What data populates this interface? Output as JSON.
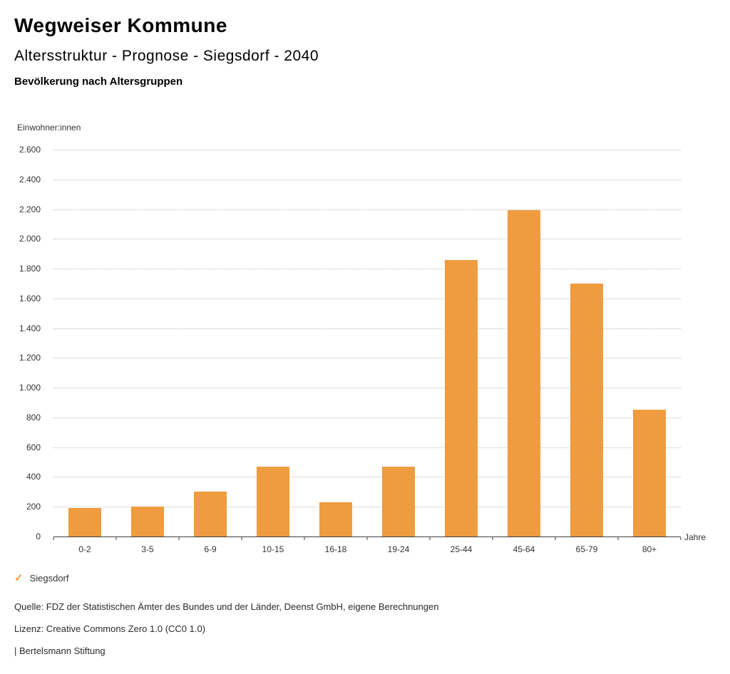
{
  "header": {
    "title": "Wegweiser Kommune",
    "subtitle": "Altersstruktur - Prognose - Siegsdorf - 2040",
    "chart_heading": "Bevölkerung nach Altersgruppen"
  },
  "chart_data": {
    "type": "bar",
    "title": "Bevölkerung nach Altersgruppen",
    "unit_label": "Einwohner:innen",
    "xlabel": "Jahre",
    "ylabel": "Einwohner:innen",
    "categories": [
      "0-2",
      "3-5",
      "6-9",
      "10-15",
      "16-18",
      "19-24",
      "25-44",
      "45-64",
      "65-79",
      "80+"
    ],
    "values": [
      190,
      200,
      300,
      470,
      230,
      470,
      1860,
      2195,
      1700,
      850
    ],
    "series_name": "Siegsdorf",
    "bar_color": "#EE9C3F",
    "ylim": [
      0,
      2600
    ],
    "y_tick_step": 200,
    "y_tick_labels": [
      "0",
      "200",
      "400",
      "600",
      "800",
      "1.000",
      "1.200",
      "1.400",
      "1.600",
      "1.800",
      "2.000",
      "2.200",
      "2.400",
      "2.600"
    ],
    "grid": "horizontal-dotted",
    "legend_position": "bottom-left"
  },
  "legend": {
    "check_icon": "✓",
    "label": "Siegsdorf",
    "color": "#EE9C3F"
  },
  "footer": {
    "source": "Quelle: FDZ der Statistischen Ämter des Bundes und der Länder, Deenst GmbH, eigene Berechnungen",
    "license": "Lizenz: Creative Commons Zero 1.0 (CC0 1.0)",
    "brand": "| Bertelsmann Stiftung"
  }
}
